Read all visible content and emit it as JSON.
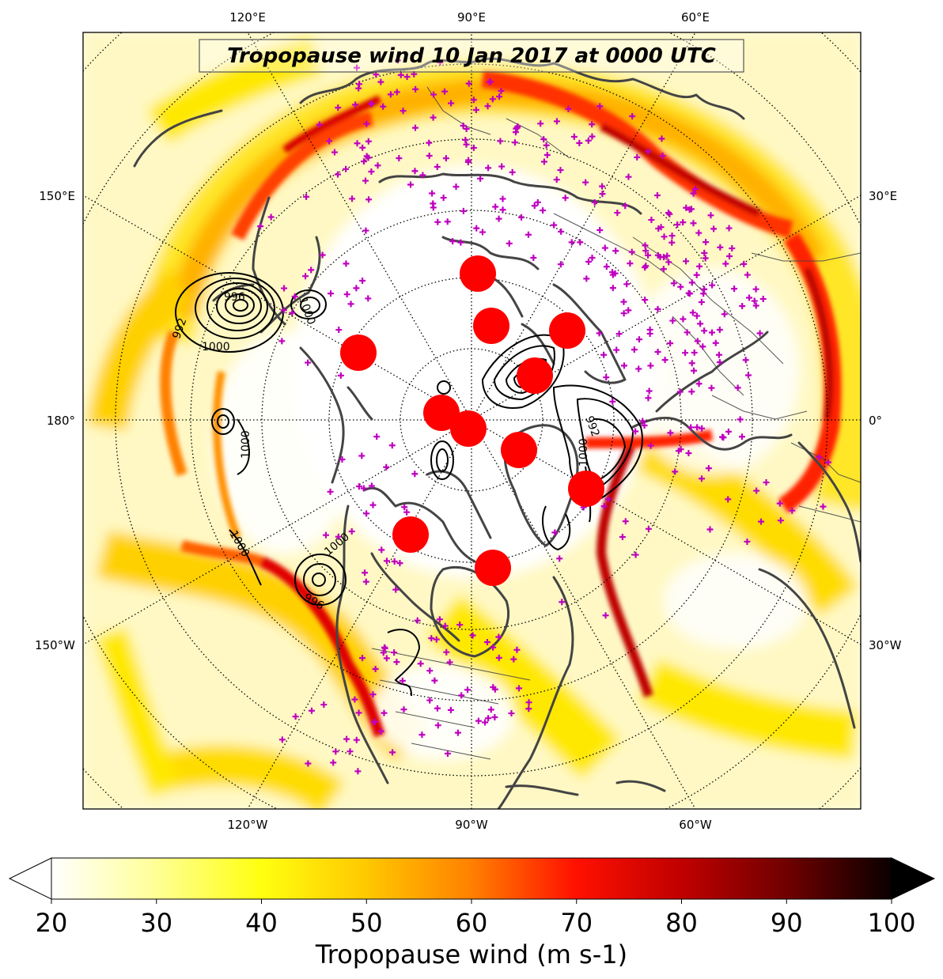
{
  "title": "Tropopause wind 10 Jan 2017 at 0000 UTC",
  "map": {
    "projection": "north polar stereographic",
    "top_longitude_labels": [
      "120°E",
      "90°E",
      "60°E"
    ],
    "bottom_longitude_labels": [
      "120°W",
      "90°W",
      "60°W"
    ],
    "left_longitude_labels": [
      "150°E",
      "180°",
      "150°W"
    ],
    "right_longitude_labels": [
      "30°E",
      "0°",
      "30°W"
    ],
    "colors": {
      "coastline": "#444444",
      "station_marker": "#c000c0",
      "polar_vortex_marker": "#ff0000",
      "contour": "#000000"
    },
    "pressure_contour_labels": [
      "1000",
      "996",
      "992",
      "1000",
      "1000",
      "996",
      "1000",
      "1000",
      "992",
      "996",
      "1000"
    ]
  },
  "colorbar": {
    "label": "Tropopause wind (m s-1)",
    "ticks": [
      "20",
      "30",
      "40",
      "50",
      "60",
      "70",
      "80",
      "90",
      "100"
    ],
    "min": 20,
    "max": 100,
    "colormap": "hot_r",
    "extend": "both"
  }
}
